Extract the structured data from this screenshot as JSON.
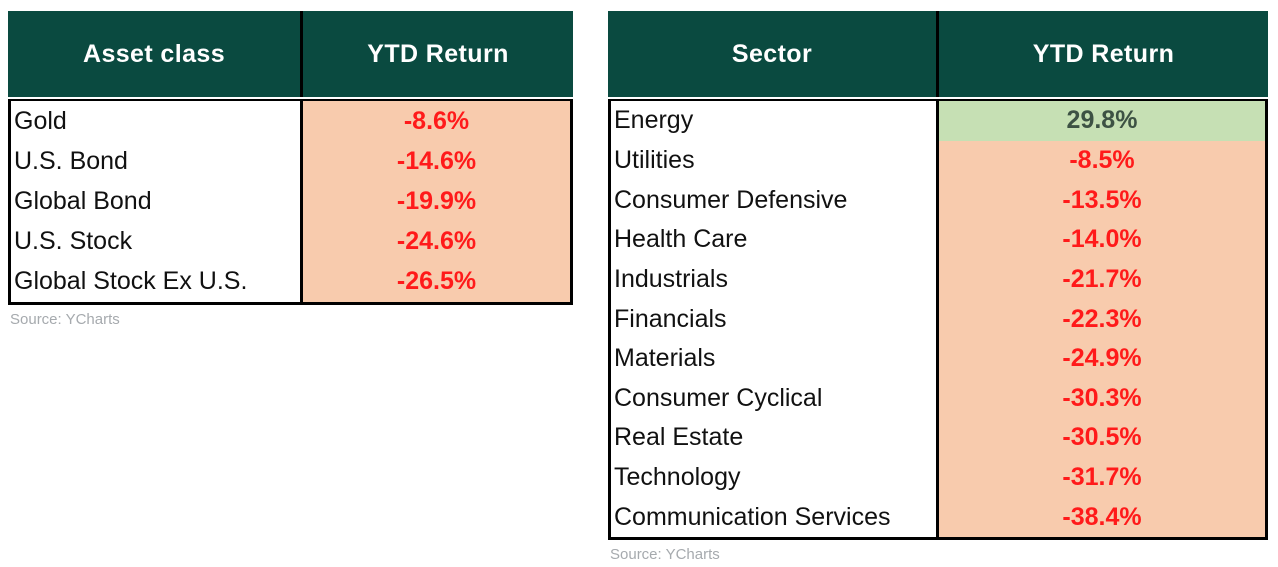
{
  "colors": {
    "header_bg": "#0a4a40",
    "header_text": "#ffffff",
    "negative_bg": "#f8cbad",
    "negative_text": "#ff1a1a",
    "positive_bg": "#c6e0b4",
    "positive_text": "#3d5244",
    "label_text": "#111111",
    "source_text": "#a6aaae",
    "border": "#000000"
  },
  "tables": [
    {
      "title": "asset-class-table",
      "header": {
        "col1": "Asset class",
        "col2": "YTD Return"
      },
      "rows": [
        {
          "label": "Gold",
          "value": "-8.6%",
          "positive": false
        },
        {
          "label": "U.S. Bond",
          "value": "-14.6%",
          "positive": false
        },
        {
          "label": "Global Bond",
          "value": "-19.9%",
          "positive": false
        },
        {
          "label": "U.S. Stock",
          "value": "-24.6%",
          "positive": false
        },
        {
          "label": "Global Stock Ex U.S.",
          "value": "-26.5%",
          "positive": false
        }
      ],
      "source": "Source: YCharts"
    },
    {
      "title": "sector-table",
      "header": {
        "col1": "Sector",
        "col2": "YTD Return"
      },
      "rows": [
        {
          "label": "Energy",
          "value": "29.8%",
          "positive": true
        },
        {
          "label": "Utilities",
          "value": "-8.5%",
          "positive": false
        },
        {
          "label": "Consumer Defensive",
          "value": "-13.5%",
          "positive": false
        },
        {
          "label": "Health Care",
          "value": "-14.0%",
          "positive": false
        },
        {
          "label": "Industrials",
          "value": "-21.7%",
          "positive": false
        },
        {
          "label": "Financials",
          "value": "-22.3%",
          "positive": false
        },
        {
          "label": "Materials",
          "value": "-24.9%",
          "positive": false
        },
        {
          "label": "Consumer Cyclical",
          "value": "-30.3%",
          "positive": false
        },
        {
          "label": "Real Estate",
          "value": "-30.5%",
          "positive": false
        },
        {
          "label": "Technology",
          "value": "-31.7%",
          "positive": false
        },
        {
          "label": "Communication Services",
          "value": "-38.4%",
          "positive": false
        }
      ],
      "source": "Source: YCharts"
    }
  ],
  "chart_data": [
    {
      "type": "table",
      "title": "Asset class YTD Return",
      "columns": [
        "Asset class",
        "YTD Return (%)"
      ],
      "rows": [
        [
          "Gold",
          -8.6
        ],
        [
          "U.S. Bond",
          -14.6
        ],
        [
          "Global Bond",
          -19.9
        ],
        [
          "U.S. Stock",
          -24.6
        ],
        [
          "Global Stock Ex U.S.",
          -26.5
        ]
      ],
      "source": "Source: YCharts"
    },
    {
      "type": "table",
      "title": "Sector YTD Return",
      "columns": [
        "Sector",
        "YTD Return (%)"
      ],
      "rows": [
        [
          "Energy",
          29.8
        ],
        [
          "Utilities",
          -8.5
        ],
        [
          "Consumer Defensive",
          -13.5
        ],
        [
          "Health Care",
          -14.0
        ],
        [
          "Industrials",
          -21.7
        ],
        [
          "Financials",
          -22.3
        ],
        [
          "Materials",
          -24.9
        ],
        [
          "Consumer Cyclical",
          -30.3
        ],
        [
          "Real Estate",
          -30.5
        ],
        [
          "Technology",
          -31.7
        ],
        [
          "Communication Services",
          -38.4
        ]
      ],
      "source": "Source: YCharts"
    }
  ]
}
